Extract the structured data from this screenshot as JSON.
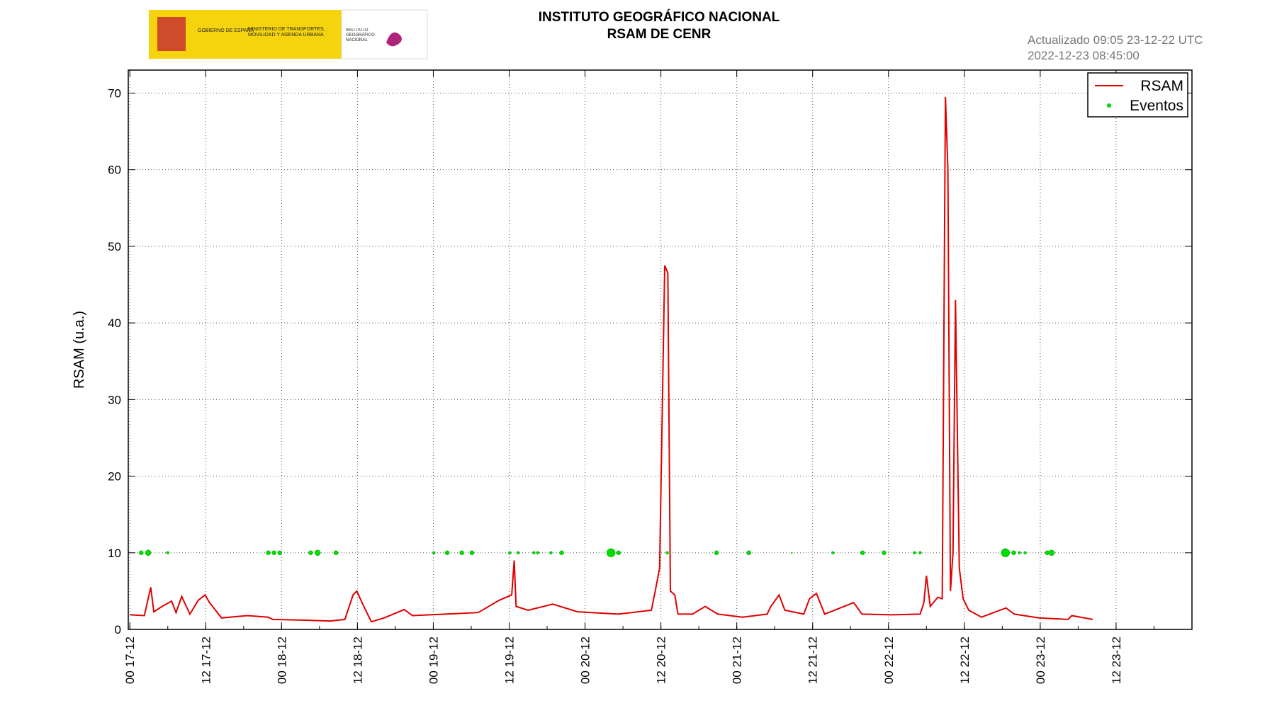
{
  "logo": {
    "gov": "GOBIERNO DE ESPAÑA",
    "ministry": "MINISTERIO DE TRANSPORTES, MOVILIDAD Y AGENDA URBANA",
    "institute": "INSTITUTO GEOGRÁFICO NACIONAL"
  },
  "chart_data": {
    "type": "line",
    "title": "INSTITUTO GEOGRÁFICO NACIONAL",
    "subtitle": "RSAM DE CENR",
    "annotations": [
      "Actualizado 09:05 23-12-22 UTC",
      "2022-12-23 08:45:00"
    ],
    "y_label": "RSAM (u.a.)",
    "xlim": [
      "16-12 23:45",
      "24-12 00:00"
    ],
    "xticks": [
      {
        "value": "17-12 00:00",
        "label": "00 17-12"
      },
      {
        "value": "17-12 12:00",
        "label": "12 17-12"
      },
      {
        "value": "18-12 00:00",
        "label": "00 18-12"
      },
      {
        "value": "18-12 12:00",
        "label": "12 18-12"
      },
      {
        "value": "19-12 00:00",
        "label": "00 19-12"
      },
      {
        "value": "19-12 12:00",
        "label": "12 19-12"
      },
      {
        "value": "20-12 00:00",
        "label": "00 20-12"
      },
      {
        "value": "20-12 12:00",
        "label": "12 20-12"
      },
      {
        "value": "21-12 00:00",
        "label": "00 21-12"
      },
      {
        "value": "21-12 12:00",
        "label": "12 21-12"
      },
      {
        "value": "22-12 00:00",
        "label": "00 22-12"
      },
      {
        "value": "22-12 12:00",
        "label": "12 22-12"
      },
      {
        "value": "23-12 00:00",
        "label": "00 23-12"
      },
      {
        "value": "23-12 12:00",
        "label": "12 23-12"
      }
    ],
    "ylim": [
      0,
      73
    ],
    "yticks": [
      0,
      10,
      20,
      30,
      40,
      50,
      60,
      70
    ],
    "grid": true,
    "legend": "upper right",
    "series": [
      {
        "name": "RSAM",
        "color": "#e00000",
        "x": [
          "17-12 00:00",
          "17-12 02:18",
          "17-12 03:18",
          "17-12 03:48",
          "17-12 05:06",
          "17-12 06:36",
          "17-12 07:18",
          "17-12 08:12",
          "17-12 09:30",
          "17-12 10:48",
          "17-12 11:54",
          "17-12 12:36",
          "17-12 14:30",
          "17-12 18:36",
          "17-12 21:54",
          "17-12 22:36",
          "18-12 03:48",
          "18-12 07:42",
          "18-12 10:00",
          "18-12 11:18",
          "18-12 11:54",
          "18-12 12:54",
          "18-12 14:12",
          "18-12 16:12",
          "18-12 19:24",
          "18-12 20:42",
          "19-12 01:54",
          "19-12 07:06",
          "19-12 10:24",
          "19-12 12:24",
          "19-12 12:48",
          "19-12 13:06",
          "19-12 15:00",
          "19-12 18:54",
          "19-12 22:48",
          "20-12 05:18",
          "20-12 10:30",
          "20-12 11:06",
          "20-12 11:48",
          "20-12 12:36",
          "20-12 13:06",
          "20-12 13:30",
          "20-12 14:12",
          "20-12 14:42",
          "20-12 17:00",
          "20-12 19:00",
          "20-12 21:00",
          "21-12 00:54",
          "21-12 04:48",
          "21-12 05:24",
          "21-12 06:42",
          "21-12 07:36",
          "21-12 10:36",
          "21-12 11:30",
          "21-12 12:36",
          "21-12 13:54",
          "21-12 18:30",
          "21-12 19:48",
          "22-12 00:24",
          "22-12 05:00",
          "22-12 05:36",
          "22-12 06:00",
          "22-12 06:36",
          "22-12 07:48",
          "22-12 08:30",
          "22-12 09:00",
          "22-12 09:24",
          "22-12 09:48",
          "22-12 10:12",
          "22-12 10:36",
          "22-12 11:12",
          "22-12 11:48",
          "22-12 12:42",
          "22-12 14:42",
          "22-12 18:36",
          "22-12 19:54",
          "22-12 23:48",
          "23-12 04:24",
          "23-12 05:00",
          "23-12 08:18"
        ],
        "values": [
          1.9,
          1.8,
          5.5,
          2.3,
          3.0,
          3.7,
          2.2,
          4.3,
          2.0,
          3.8,
          4.5,
          3.5,
          1.5,
          1.8,
          1.6,
          1.3,
          1.2,
          1.1,
          1.3,
          4.5,
          5.0,
          3.2,
          1.0,
          1.5,
          2.6,
          1.8,
          2.0,
          2.2,
          3.8,
          4.5,
          9.0,
          3.0,
          2.5,
          3.3,
          2.3,
          2.0,
          2.5,
          5.0,
          8.0,
          47.5,
          46.5,
          5.0,
          4.5,
          2.0,
          2.0,
          3.0,
          2.0,
          1.6,
          2.0,
          3.0,
          4.5,
          2.5,
          2.0,
          4.0,
          4.7,
          2.0,
          3.5,
          2.0,
          1.9,
          2.0,
          3.5,
          7.0,
          3.0,
          4.2,
          4.0,
          69.5,
          60,
          5,
          10,
          43,
          8,
          4,
          2.5,
          1.6,
          2.8,
          2.0,
          1.5,
          1.3,
          1.8,
          1.3
        ]
      },
      {
        "name": "Eventos",
        "color": "#00dd00",
        "type": "scatter",
        "x": [
          "17-12 01:48",
          "17-12 02:54",
          "17-12 06:00",
          "17-12 21:54",
          "17-12 22:48",
          "17-12 23:42",
          "18-12 04:36",
          "18-12 05:42",
          "18-12 08:36",
          "19-12 00:06",
          "19-12 02:12",
          "19-12 04:30",
          "19-12 06:06",
          "19-12 12:06",
          "19-12 13:24",
          "19-12 15:54",
          "19-12 16:30",
          "19-12 18:36",
          "19-12 20:18",
          "20-12 04:06",
          "20-12 05:18",
          "20-12 13:00",
          "20-12 20:48",
          "21-12 01:54",
          "21-12 08:42",
          "21-12 15:12",
          "21-12 19:54",
          "21-12 23:18",
          "22-12 04:06",
          "22-12 05:00",
          "22-12 18:30",
          "22-12 19:48",
          "22-12 20:42",
          "22-12 21:36",
          "23-12 01:06",
          "23-12 01:48"
        ],
        "values": [
          10,
          10,
          10,
          10,
          10,
          10,
          10,
          10,
          10,
          10,
          10,
          10,
          10,
          10,
          10,
          10,
          10,
          10,
          10,
          10,
          10,
          10,
          10,
          10,
          10,
          10,
          10,
          10,
          10,
          10,
          10,
          10,
          10,
          10,
          10,
          10
        ],
        "sizes": [
          3,
          4,
          2,
          3,
          3,
          3,
          3,
          4,
          3,
          2,
          3,
          3,
          3,
          2,
          2,
          2,
          2,
          2,
          3,
          6,
          3,
          2,
          3,
          3,
          1,
          2,
          3,
          3,
          2,
          2,
          6,
          3,
          2,
          2,
          3,
          4
        ]
      }
    ]
  }
}
